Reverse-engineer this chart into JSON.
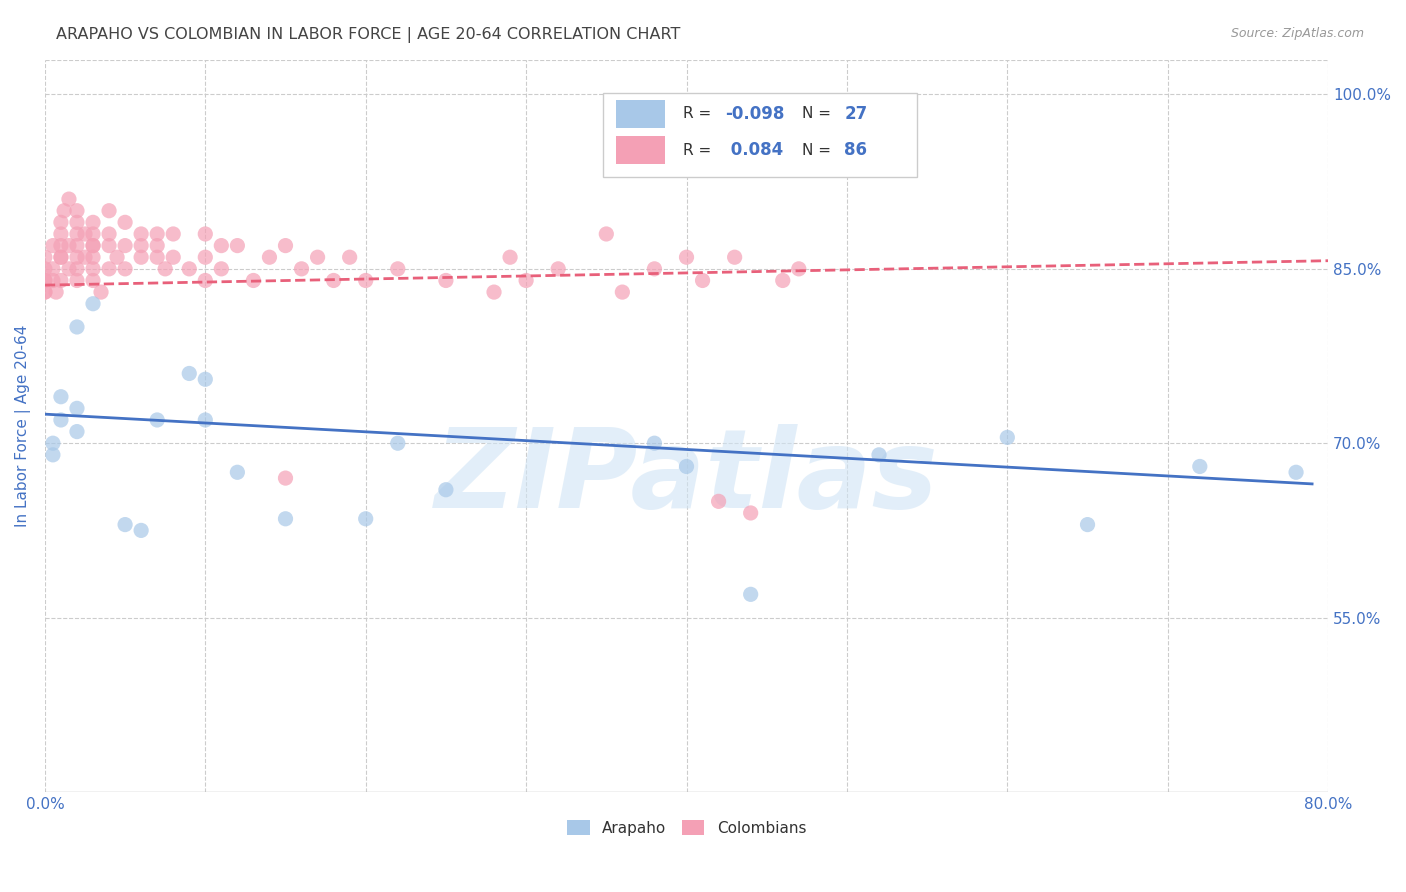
{
  "title": "ARAPAHO VS COLOMBIAN IN LABOR FORCE | AGE 20-64 CORRELATION CHART",
  "source": "Source: ZipAtlas.com",
  "ylabel": "In Labor Force | Age 20-64",
  "xlim": [
    0.0,
    0.8
  ],
  "ylim": [
    0.4,
    1.03
  ],
  "xticks": [
    0.0,
    0.1,
    0.2,
    0.3,
    0.4,
    0.5,
    0.6,
    0.7,
    0.8
  ],
  "ytick_right_vals": [
    0.55,
    0.7,
    0.85,
    1.0
  ],
  "ytick_right_labels": [
    "55.0%",
    "70.0%",
    "85.0%",
    "100.0%"
  ],
  "arapaho_color": "#a8c8e8",
  "colombian_color": "#f4a0b5",
  "arapaho_line_color": "#4472c4",
  "colombian_line_color": "#e8607a",
  "watermark": "ZIPatlas",
  "watermark_color": "#d0e4f5",
  "arapaho_x": [
    0.005,
    0.005,
    0.01,
    0.01,
    0.02,
    0.02,
    0.02,
    0.03,
    0.05,
    0.06,
    0.07,
    0.09,
    0.1,
    0.1,
    0.12,
    0.15,
    0.2,
    0.22,
    0.25,
    0.38,
    0.4,
    0.44,
    0.52,
    0.6,
    0.65,
    0.72,
    0.78
  ],
  "arapaho_y": [
    0.7,
    0.69,
    0.72,
    0.74,
    0.73,
    0.71,
    0.8,
    0.82,
    0.63,
    0.625,
    0.72,
    0.76,
    0.755,
    0.72,
    0.675,
    0.635,
    0.635,
    0.7,
    0.66,
    0.7,
    0.68,
    0.57,
    0.69,
    0.705,
    0.63,
    0.68,
    0.675
  ],
  "colombian_x": [
    0.0,
    0.0,
    0.0,
    0.0,
    0.0,
    0.0,
    0.005,
    0.005,
    0.005,
    0.007,
    0.01,
    0.01,
    0.01,
    0.01,
    0.01,
    0.01,
    0.012,
    0.015,
    0.015,
    0.015,
    0.02,
    0.02,
    0.02,
    0.02,
    0.02,
    0.02,
    0.02,
    0.025,
    0.025,
    0.03,
    0.03,
    0.03,
    0.03,
    0.03,
    0.03,
    0.03,
    0.035,
    0.04,
    0.04,
    0.04,
    0.04,
    0.045,
    0.05,
    0.05,
    0.05,
    0.06,
    0.06,
    0.06,
    0.07,
    0.07,
    0.07,
    0.075,
    0.08,
    0.08,
    0.09,
    0.1,
    0.1,
    0.1,
    0.11,
    0.11,
    0.12,
    0.13,
    0.14,
    0.15,
    0.16,
    0.17,
    0.18,
    0.19,
    0.2,
    0.22,
    0.25,
    0.28,
    0.29,
    0.3,
    0.32,
    0.35,
    0.36,
    0.38,
    0.4,
    0.41,
    0.42,
    0.43,
    0.44,
    0.46,
    0.47,
    0.15
  ],
  "colombian_y": [
    0.83,
    0.84,
    0.85,
    0.86,
    0.84,
    0.83,
    0.84,
    0.87,
    0.85,
    0.83,
    0.86,
    0.84,
    0.88,
    0.87,
    0.89,
    0.86,
    0.9,
    0.87,
    0.85,
    0.91,
    0.9,
    0.88,
    0.89,
    0.86,
    0.84,
    0.87,
    0.85,
    0.88,
    0.86,
    0.89,
    0.87,
    0.86,
    0.85,
    0.88,
    0.84,
    0.87,
    0.83,
    0.9,
    0.88,
    0.87,
    0.85,
    0.86,
    0.89,
    0.87,
    0.85,
    0.88,
    0.87,
    0.86,
    0.87,
    0.86,
    0.88,
    0.85,
    0.88,
    0.86,
    0.85,
    0.86,
    0.88,
    0.84,
    0.87,
    0.85,
    0.87,
    0.84,
    0.86,
    0.87,
    0.85,
    0.86,
    0.84,
    0.86,
    0.84,
    0.85,
    0.84,
    0.83,
    0.86,
    0.84,
    0.85,
    0.88,
    0.83,
    0.85,
    0.86,
    0.84,
    0.65,
    0.86,
    0.64,
    0.84,
    0.85,
    0.67
  ],
  "arapaho_line_x": [
    0.0,
    0.79
  ],
  "arapaho_line_y": [
    0.725,
    0.665
  ],
  "colombian_line_x": [
    0.0,
    0.8
  ],
  "colombian_line_y": [
    0.836,
    0.857
  ],
  "grid_color": "#cccccc",
  "background_color": "#ffffff",
  "title_color": "#444444",
  "axis_label_color": "#4472c4",
  "tick_color": "#4472c4",
  "legend_box_color": "#f0f0f0",
  "legend_border_color": "#cccccc"
}
